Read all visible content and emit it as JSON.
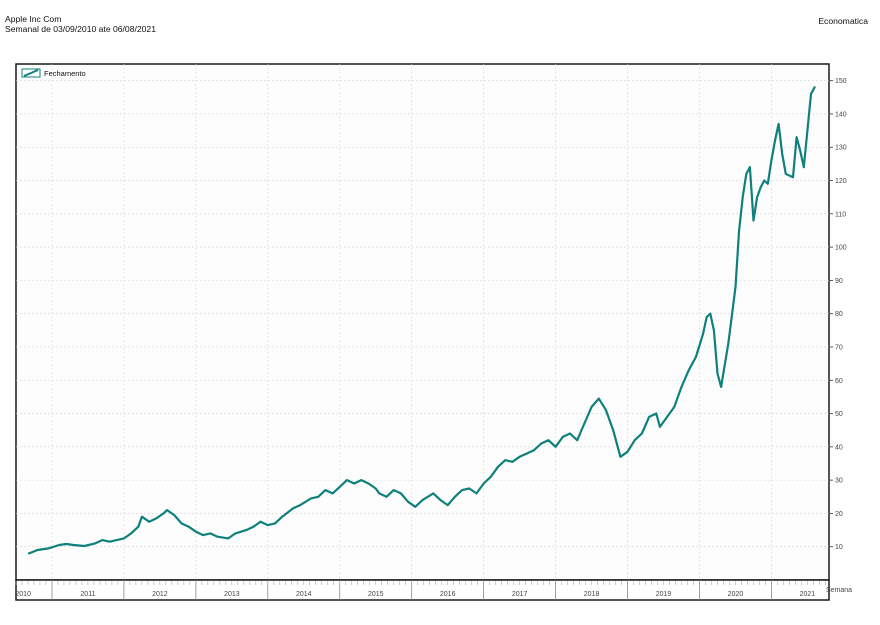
{
  "header": {
    "title": "Apple Inc Com",
    "subtitle": "Semanal de 03/09/2010 ate 06/08/2021",
    "brand": "Economatica"
  },
  "chart_data": {
    "type": "line",
    "title": "Apple Inc Com",
    "subtitle": "Semanal de 03/09/2010 ate 06/08/2021",
    "xlabel": "Semana",
    "ylabel": "",
    "xlim": [
      2010.5,
      2021.8
    ],
    "ylim": [
      0,
      155
    ],
    "yticks": [
      10,
      20,
      30,
      40,
      50,
      60,
      70,
      80,
      90,
      100,
      110,
      120,
      130,
      140,
      150
    ],
    "xticks": [
      "2010",
      "2011",
      "2012",
      "2013",
      "2014",
      "2015",
      "2016",
      "2017",
      "2018",
      "2019",
      "2020",
      "2021"
    ],
    "legend_position": "top-left",
    "grid": true,
    "colors": {
      "line": "#0f807c"
    },
    "series": [
      {
        "name": "Fechamento",
        "x": [
          2010.68,
          2010.8,
          2010.95,
          2011.1,
          2011.2,
          2011.3,
          2011.45,
          2011.6,
          2011.7,
          2011.8,
          2011.9,
          2012.0,
          2012.1,
          2012.2,
          2012.25,
          2012.35,
          2012.45,
          2012.55,
          2012.6,
          2012.7,
          2012.8,
          2012.9,
          2013.0,
          2013.1,
          2013.2,
          2013.3,
          2013.45,
          2013.55,
          2013.7,
          2013.8,
          2013.9,
          2014.0,
          2014.1,
          2014.2,
          2014.35,
          2014.45,
          2014.6,
          2014.7,
          2014.8,
          2014.9,
          2015.0,
          2015.1,
          2015.2,
          2015.3,
          2015.4,
          2015.5,
          2015.55,
          2015.65,
          2015.75,
          2015.85,
          2015.95,
          2016.05,
          2016.15,
          2016.3,
          2016.4,
          2016.5,
          2016.6,
          2016.7,
          2016.8,
          2016.9,
          2017.0,
          2017.1,
          2017.2,
          2017.3,
          2017.4,
          2017.5,
          2017.6,
          2017.7,
          2017.8,
          2017.9,
          2018.0,
          2018.1,
          2018.2,
          2018.3,
          2018.4,
          2018.5,
          2018.6,
          2018.7,
          2018.8,
          2018.9,
          2019.0,
          2019.1,
          2019.2,
          2019.3,
          2019.4,
          2019.45,
          2019.55,
          2019.65,
          2019.75,
          2019.85,
          2019.95,
          2020.05,
          2020.1,
          2020.15,
          2020.2,
          2020.25,
          2020.3,
          2020.4,
          2020.5,
          2020.55,
          2020.6,
          2020.65,
          2020.7,
          2020.75,
          2020.8,
          2020.85,
          2020.9,
          2020.95,
          2021.0,
          2021.05,
          2021.1,
          2021.15,
          2021.2,
          2021.3,
          2021.35,
          2021.4,
          2021.45,
          2021.5,
          2021.55,
          2021.6
        ],
        "values": [
          8,
          9,
          9.5,
          10.5,
          10.8,
          10.5,
          10.2,
          11,
          12,
          11.5,
          12,
          12.5,
          14,
          16,
          19,
          17.5,
          18.5,
          20,
          21,
          19.5,
          17,
          16,
          14.5,
          13.5,
          14,
          13,
          12.5,
          14,
          15,
          16,
          17.5,
          16.5,
          17,
          19,
          21.5,
          22.5,
          24.5,
          25,
          27,
          26,
          28,
          30,
          29,
          30,
          29,
          27.5,
          26,
          25,
          27,
          26,
          23.5,
          22,
          24,
          26,
          24,
          22.5,
          25,
          27,
          27.5,
          26,
          29,
          31,
          34,
          36,
          35.5,
          37,
          38,
          39,
          41,
          42,
          40,
          43,
          44,
          42,
          47,
          52,
          54.5,
          51,
          45,
          37,
          38.5,
          42,
          44,
          49,
          50,
          46,
          49,
          52,
          58,
          63,
          67,
          74,
          79,
          80,
          75,
          62,
          58,
          71,
          88,
          105,
          115,
          122,
          124,
          108,
          115,
          118,
          120,
          119,
          126,
          132,
          137,
          128,
          122,
          121,
          133,
          129,
          124,
          135,
          146,
          148
        ]
      }
    ]
  }
}
